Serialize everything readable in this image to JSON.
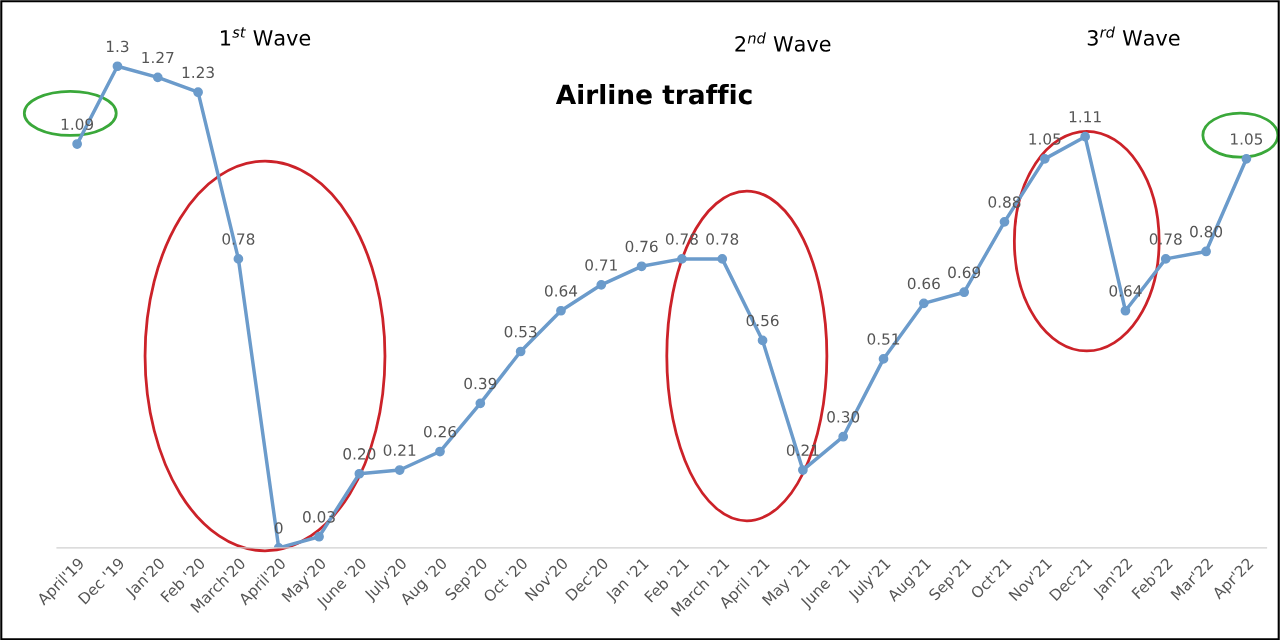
{
  "chart_data": {
    "type": "line",
    "title": "Airline traffic",
    "annotations": [
      "1$^{st}$ Wave",
      "2$^{nd}$ Wave",
      "3$^{rd}$ Wave"
    ],
    "categories": [
      "April'19",
      "Dec '19",
      "Jan'20",
      "Feb '20",
      "March'20",
      "April'20",
      "May'20",
      "June '20",
      "July'20",
      "Aug '20",
      "Sep'20",
      "Oct '20",
      "Nov'20",
      "Dec'20",
      "Jan '21",
      "Feb '21",
      "March '21",
      "April '21",
      "May '21",
      "June '21",
      "July'21",
      "Aug'21",
      "Sep'21",
      "Oct'21",
      "Nov'21",
      "Dec'21",
      "Jan'22",
      "Feb'22",
      "Mar'22",
      "Apr'22"
    ],
    "series": [
      {
        "color": "#6b9bcb",
        "values": [
          1.09,
          1.3,
          1.27,
          1.23,
          0.78,
          0,
          0.03,
          0.2,
          0.21,
          0.26,
          0.39,
          0.53,
          0.64,
          0.71,
          0.76,
          0.78,
          0.78,
          0.56,
          0.21,
          0.3,
          0.51,
          0.66,
          0.69,
          0.88,
          1.05,
          1.11,
          0.64,
          0.78,
          0.8,
          1.05
        ],
        "value_labels": [
          "1.09",
          "1.3",
          "1.27",
          "1.23",
          "0.78",
          "0",
          "0.03",
          "0.20",
          "0.21",
          "0.26",
          "0.39",
          "0.53",
          "0.64",
          "0.71",
          "0.76",
          "0.78",
          "0.78",
          "0.56",
          "0.21",
          "0.30",
          "0.51",
          "0.66",
          "0.69",
          "0.88",
          "1.05",
          "1.11",
          "0.64",
          "0.78",
          "0.80",
          "1.05"
        ]
      }
    ],
    "marker": "circle",
    "line_style": "solid",
    "grid": false,
    "legend": false,
    "tick_labels": "x"
  }
}
